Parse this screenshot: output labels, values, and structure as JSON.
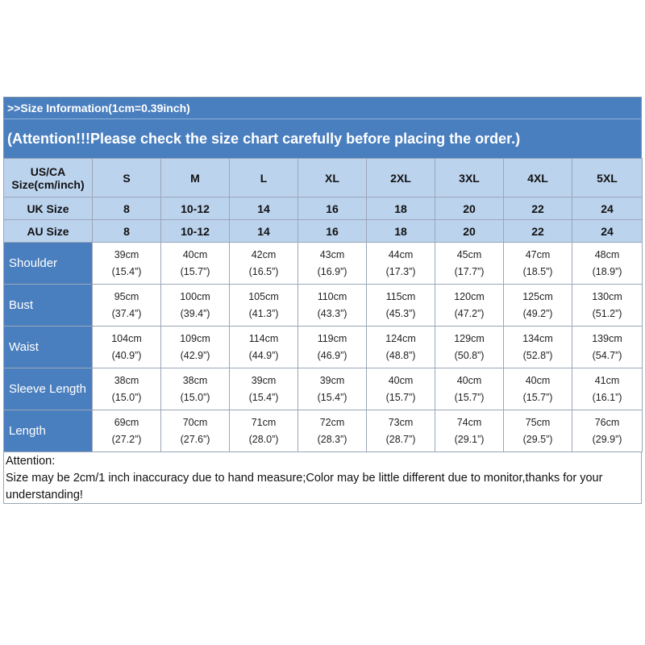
{
  "banner": {
    "line1": ">>Size Information(1cm=0.39inch)",
    "line2": "(Attention!!!Please check the size chart carefully before placing the order.)"
  },
  "header": {
    "us_label_1": "US/CA",
    "us_label_2": "Size(cm/inch)",
    "sizes": [
      "S",
      "M",
      "L",
      "XL",
      "2XL",
      "3XL",
      "4XL",
      "5XL"
    ],
    "uk_label": "UK Size",
    "uk": [
      "8",
      "10-12",
      "14",
      "16",
      "18",
      "20",
      "22",
      "24"
    ],
    "au_label": "AU Size",
    "au": [
      "8",
      "10-12",
      "14",
      "16",
      "18",
      "20",
      "22",
      "24"
    ]
  },
  "rows": [
    {
      "label": "Shoulder",
      "cm": [
        "39cm",
        "40cm",
        "42cm",
        "43cm",
        "44cm",
        "45cm",
        "47cm",
        "48cm"
      ],
      "inch": [
        "(15.4”)",
        "(15.7”)",
        "(16.5”)",
        "(16.9”)",
        "(17.3”)",
        "(17.7”)",
        "(18.5”)",
        "(18.9”)"
      ]
    },
    {
      "label": "Bust",
      "cm": [
        "95cm",
        "100cm",
        "105cm",
        "110cm",
        "115cm",
        "120cm",
        "125cm",
        "130cm"
      ],
      "inch": [
        "(37.4”)",
        "(39.4”)",
        "(41.3”)",
        "(43.3”)",
        "(45.3”)",
        "(47.2”)",
        "(49.2”)",
        "(51.2”)"
      ]
    },
    {
      "label": "Waist",
      "cm": [
        "104cm",
        "109cm",
        "114cm",
        "119cm",
        "124cm",
        "129cm",
        "134cm",
        "139cm"
      ],
      "inch": [
        "(40.9”)",
        "(42.9”)",
        "(44.9”)",
        "(46.9”)",
        "(48.8”)",
        "(50.8”)",
        "(52.8”)",
        "(54.7”)"
      ]
    },
    {
      "label": "Sleeve Length",
      "cm": [
        "38cm",
        "38cm",
        "39cm",
        "39cm",
        "40cm",
        "40cm",
        "40cm",
        "41cm"
      ],
      "inch": [
        "(15.0”)",
        "(15.0”)",
        "(15.4”)",
        "(15.4”)",
        "(15.7”)",
        "(15.7”)",
        "(15.7”)",
        "(16.1”)"
      ]
    },
    {
      "label": "Length",
      "cm": [
        "69cm",
        "70cm",
        "71cm",
        "72cm",
        "73cm",
        "74cm",
        "75cm",
        "76cm"
      ],
      "inch": [
        "(27.2”)",
        "(27.6”)",
        "(28.0”)",
        "(28.3”)",
        "(28.7”)",
        "(29.1”)",
        "(29.5”)",
        "(29.9”)"
      ]
    }
  ],
  "note": {
    "title": "Attention:",
    "body": "Size may be 2cm/1 inch inaccuracy due to hand measure;Color may be little different due to monitor,thanks for your understanding!"
  },
  "colors": {
    "banner": "#4a7fbf",
    "header_cell": "#bcd3ee",
    "label_cell": "#4a7fbf"
  }
}
